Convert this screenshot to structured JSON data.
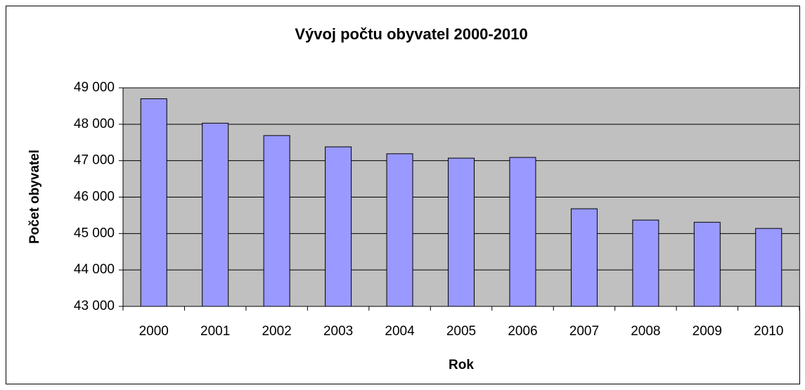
{
  "chart_data": {
    "type": "bar",
    "title": "Vývoj počtu obyvatel 2000-2010",
    "x_label": "Rok",
    "y_label": "Počet obyvatel",
    "categories": [
      "2000",
      "2001",
      "2002",
      "2003",
      "2004",
      "2005",
      "2006",
      "2007",
      "2008",
      "2009",
      "2010"
    ],
    "values": [
      48700,
      48030,
      47690,
      47380,
      47190,
      47070,
      47090,
      45680,
      45370,
      45310,
      45140
    ],
    "color": "#9999ff",
    "plot_background": "#c0c0c0",
    "ylim": [
      43000,
      49000
    ],
    "yticks": [
      {
        "value": 43000,
        "label": "43 000"
      },
      {
        "value": 44000,
        "label": "44 000"
      },
      {
        "value": 45000,
        "label": "45 000"
      },
      {
        "value": 46000,
        "label": "46 000"
      },
      {
        "value": 47000,
        "label": "47 000"
      },
      {
        "value": 48000,
        "label": "48 000"
      },
      {
        "value": 49000,
        "label": "49 000"
      }
    ],
    "grid": true
  }
}
